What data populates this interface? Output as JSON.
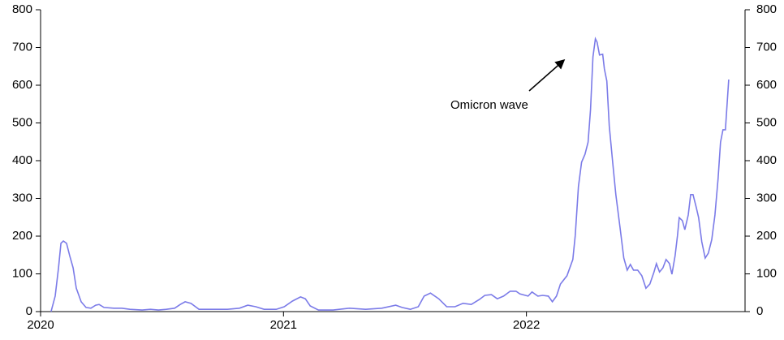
{
  "chart_data": {
    "type": "line",
    "annotation": "Omicron wave",
    "x": [
      2020.043,
      2020.06,
      2020.074,
      2020.084,
      2020.094,
      2020.107,
      2020.12,
      2020.134,
      2020.147,
      2020.167,
      2020.187,
      2020.207,
      2020.227,
      2020.241,
      2020.261,
      2020.301,
      2020.334,
      2020.368,
      2020.418,
      2020.452,
      2020.485,
      2020.518,
      2020.552,
      2020.575,
      2020.595,
      2020.619,
      2020.652,
      2020.702,
      2020.769,
      2020.819,
      2020.853,
      2020.886,
      2020.92,
      2020.97,
      2021.003,
      2021.037,
      2021.07,
      2021.09,
      2021.11,
      2021.144,
      2021.204,
      2021.271,
      2021.338,
      2021.405,
      2021.462,
      2021.488,
      2021.522,
      2021.555,
      2021.579,
      2021.605,
      2021.639,
      2021.672,
      2021.706,
      2021.739,
      2021.773,
      2021.806,
      2021.829,
      2021.856,
      2021.88,
      2021.906,
      2021.933,
      2021.957,
      2021.973,
      2022.007,
      2022.023,
      2022.047,
      2022.067,
      2022.09,
      2022.107,
      2022.124,
      2022.14,
      2022.167,
      2022.191,
      2022.201,
      2022.214,
      2022.227,
      2022.241,
      2022.254,
      2022.264,
      2022.274,
      2022.284,
      2022.291,
      2022.301,
      2022.314,
      2022.321,
      2022.331,
      2022.341,
      2022.355,
      2022.368,
      2022.385,
      2022.401,
      2022.415,
      2022.428,
      2022.441,
      2022.458,
      2022.475,
      2022.492,
      2022.508,
      2022.525,
      2022.535,
      2022.548,
      2022.562,
      2022.575,
      2022.589,
      2022.599,
      2022.612,
      2022.622,
      2022.629,
      2022.642,
      2022.652,
      2022.666,
      2022.676,
      2022.686,
      2022.699,
      2022.709,
      2022.722,
      2022.736,
      2022.749,
      2022.763,
      2022.776,
      2022.789,
      2022.799,
      2022.809,
      2022.819,
      2022.833
    ],
    "series": [
      {
        "color": "#7b7be8",
        "values": [
          0,
          41,
          116,
          181,
          187,
          181,
          148,
          116,
          62,
          26,
          11,
          9,
          17,
          19,
          11,
          9,
          9,
          6,
          4,
          6,
          4,
          6,
          9,
          19,
          26,
          22,
          6,
          6,
          6,
          9,
          17,
          13,
          6,
          6,
          13,
          28,
          39,
          34,
          15,
          4,
          4,
          9,
          6,
          9,
          17,
          11,
          6,
          13,
          41,
          49,
          34,
          13,
          13,
          22,
          19,
          32,
          43,
          45,
          34,
          41,
          54,
          54,
          47,
          41,
          52,
          41,
          43,
          41,
          26,
          41,
          73,
          95,
          138,
          202,
          331,
          396,
          417,
          449,
          535,
          675,
          723,
          714,
          680,
          682,
          643,
          611,
          492,
          396,
          310,
          224,
          142,
          110,
          125,
          110,
          110,
          95,
          62,
          73,
          105,
          127,
          105,
          116,
          138,
          127,
          99,
          148,
          202,
          249,
          241,
          217,
          256,
          310,
          310,
          277,
          249,
          185,
          142,
          155,
          191,
          256,
          353,
          449,
          482,
          482,
          615
        ]
      }
    ],
    "xlim": [
      2020,
      2022.9
    ],
    "xticks": [
      2020,
      2021,
      2022
    ],
    "ylim": [
      0,
      800
    ],
    "yticks": [
      0,
      100,
      200,
      300,
      400,
      500,
      600,
      700,
      800
    ],
    "y2lim": [
      0,
      800
    ],
    "y2ticks": [
      0,
      100,
      200,
      300,
      400,
      500,
      600,
      700,
      800
    ]
  }
}
